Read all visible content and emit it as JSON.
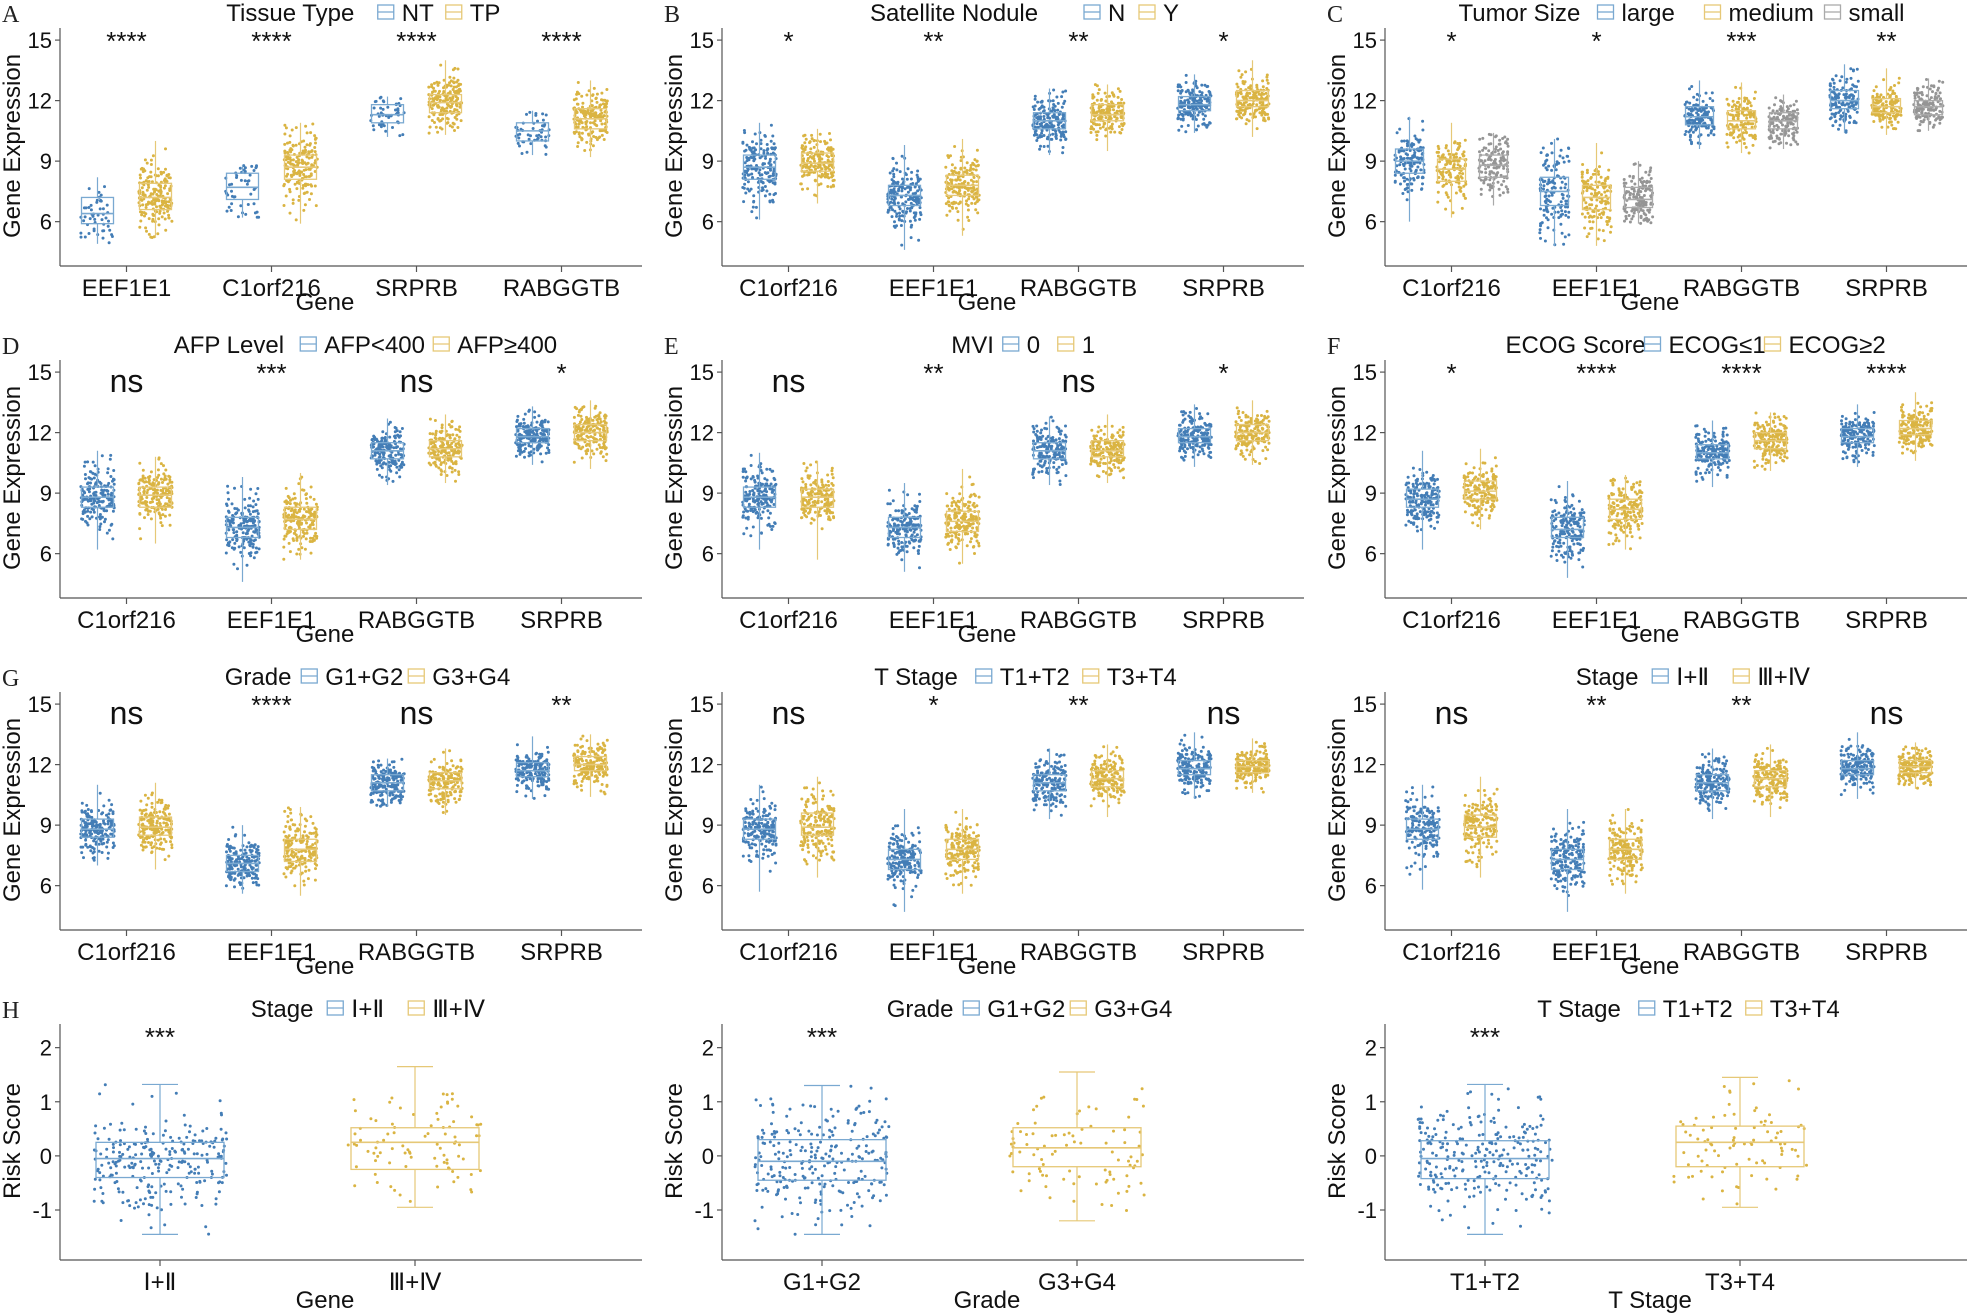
{
  "colors": {
    "group1": "#2f6fae",
    "group2": "#d6ac2e",
    "group3": "#8a8a8a",
    "box1": "#7aa9d1",
    "box2": "#e6c877",
    "box3": "#aaaaaa"
  },
  "chart_data": [
    {
      "id": "A",
      "panel_label": "A",
      "type": "box",
      "legend_title": "Tissue Type",
      "groups": [
        "NT",
        "TP"
      ],
      "xlabel": "Gene",
      "ylabel": "Gene Expression",
      "ylim": [
        4,
        15.5
      ],
      "yticks": [
        "6",
        "9",
        "12",
        "15"
      ],
      "categories": [
        "EEF1E1",
        "C1orf216",
        "SRPRB",
        "RABGGTB"
      ],
      "significance": [
        "****",
        "****",
        "****",
        "****"
      ],
      "series": [
        {
          "name": "NT",
          "boxes": [
            [
              4.9,
              5.9,
              6.4,
              7.2,
              8.2
            ],
            [
              6.2,
              7.1,
              7.7,
              8.4,
              8.8
            ],
            [
              10.2,
              10.9,
              11.3,
              11.8,
              12.2
            ],
            [
              9.3,
              10.0,
              10.5,
              10.9,
              11.5
            ]
          ]
        },
        {
          "name": "TP",
          "boxes": [
            [
              5.2,
              6.6,
              7.2,
              7.9,
              10.0
            ],
            [
              5.9,
              8.1,
              8.7,
              9.3,
              10.9
            ],
            [
              10.3,
              11.4,
              11.9,
              12.3,
              14.0
            ],
            [
              9.2,
              10.6,
              11.1,
              11.6,
              13.0
            ]
          ]
        }
      ]
    },
    {
      "id": "B",
      "panel_label": "B",
      "type": "box",
      "legend_title": "Satellite Nodule",
      "groups": [
        "N",
        "Y"
      ],
      "xlabel": "Gene",
      "ylabel": "Gene Expression",
      "ylim": [
        4,
        15.5
      ],
      "yticks": [
        "6",
        "9",
        "12",
        "15"
      ],
      "categories": [
        "C1orf216",
        "EEF1E1",
        "RABGGTB",
        "SRPRB"
      ],
      "significance": [
        "*",
        "**",
        "**",
        "*"
      ],
      "series": [
        {
          "name": "N",
          "boxes": [
            [
              6.1,
              8.1,
              8.7,
              9.3,
              10.9
            ],
            [
              4.6,
              6.8,
              7.3,
              7.8,
              9.8
            ],
            [
              9.3,
              10.6,
              11.0,
              11.4,
              12.6
            ],
            [
              10.4,
              11.5,
              11.8,
              12.2,
              13.3
            ]
          ]
        },
        {
          "name": "Y",
          "boxes": [
            [
              6.9,
              8.5,
              8.9,
              9.4,
              10.6
            ],
            [
              5.3,
              7.3,
              7.8,
              8.3,
              10.1
            ],
            [
              9.5,
              11.0,
              11.3,
              11.8,
              12.8
            ],
            [
              10.2,
              11.7,
              12.0,
              12.5,
              14.0
            ]
          ]
        }
      ]
    },
    {
      "id": "C",
      "panel_label": "C",
      "type": "box",
      "legend_title": "Tumor Size",
      "groups": [
        "large",
        "medium",
        "small"
      ],
      "xlabel": "Gene",
      "ylabel": "Gene Expression",
      "ylim": [
        4,
        15.5
      ],
      "yticks": [
        "6",
        "9",
        "12",
        "15"
      ],
      "categories": [
        "C1orf216",
        "EEF1E1",
        "RABGGTB",
        "SRPRB"
      ],
      "significance": [
        "*",
        "*",
        "***",
        "**"
      ],
      "series": [
        {
          "name": "large",
          "boxes": [
            [
              6.0,
              8.4,
              9.0,
              9.6,
              11.2
            ],
            [
              4.8,
              6.8,
              7.5,
              8.2,
              10.1
            ],
            [
              9.6,
              10.8,
              11.2,
              11.7,
              13.0
            ],
            [
              10.4,
              11.6,
              12.0,
              12.5,
              13.8
            ]
          ]
        },
        {
          "name": "medium",
          "boxes": [
            [
              6.2,
              8.0,
              8.6,
              9.1,
              10.9
            ],
            [
              4.8,
              6.6,
              7.2,
              7.8,
              9.9
            ],
            [
              9.4,
              10.6,
              11.0,
              11.5,
              12.9
            ],
            [
              10.3,
              11.4,
              11.7,
              12.1,
              13.6
            ]
          ]
        },
        {
          "name": "small",
          "boxes": [
            [
              6.8,
              8.2,
              8.8,
              9.3,
              10.4
            ],
            [
              5.9,
              6.7,
              7.1,
              7.7,
              9.0
            ],
            [
              9.6,
              10.6,
              11.0,
              11.4,
              12.3
            ],
            [
              10.5,
              11.3,
              11.7,
              12.0,
              13.1
            ]
          ]
        }
      ]
    },
    {
      "id": "D",
      "panel_label": "D",
      "type": "box",
      "legend_title": "AFP Level",
      "groups": [
        "AFP<400",
        "AFP≥400"
      ],
      "xlabel": "Gene",
      "ylabel": "Gene Expression",
      "ylim": [
        4,
        15.5
      ],
      "yticks": [
        "6",
        "9",
        "12",
        "15"
      ],
      "categories": [
        "C1orf216",
        "EEF1E1",
        "RABGGTB",
        "SRPRB"
      ],
      "significance": [
        "ns",
        "***",
        "ns",
        "*"
      ],
      "series": [
        {
          "name": "AFP<400",
          "boxes": [
            [
              6.2,
              8.3,
              8.8,
              9.3,
              11.1
            ],
            [
              4.6,
              6.8,
              7.3,
              7.8,
              9.8
            ],
            [
              9.4,
              10.7,
              11.1,
              11.5,
              12.7
            ],
            [
              10.4,
              11.5,
              11.8,
              12.2,
              13.3
            ]
          ]
        },
        {
          "name": "AFP≥400",
          "boxes": [
            [
              6.5,
              8.3,
              8.9,
              9.3,
              10.8
            ],
            [
              5.7,
              7.2,
              7.7,
              8.3,
              10.0
            ],
            [
              9.5,
              10.8,
              11.2,
              11.6,
              12.9
            ],
            [
              10.2,
              11.6,
              12.0,
              12.4,
              13.6
            ]
          ]
        }
      ]
    },
    {
      "id": "E",
      "panel_label": "E",
      "type": "box",
      "legend_title": "MVI",
      "groups": [
        "0",
        "1"
      ],
      "xlabel": "Gene",
      "ylabel": "Gene Expression",
      "ylim": [
        4,
        15.5
      ],
      "yticks": [
        "6",
        "9",
        "12",
        "15"
      ],
      "categories": [
        "C1orf216",
        "EEF1E1",
        "RABGGTB",
        "SRPRB"
      ],
      "significance": [
        "ns",
        "**",
        "ns",
        "*"
      ],
      "series": [
        {
          "name": "0",
          "boxes": [
            [
              6.2,
              8.3,
              8.8,
              9.3,
              11.0
            ],
            [
              5.1,
              6.8,
              7.3,
              7.8,
              9.5
            ],
            [
              9.4,
              10.7,
              11.1,
              11.5,
              12.8
            ],
            [
              10.3,
              11.5,
              11.8,
              12.2,
              13.4
            ]
          ]
        },
        {
          "name": "1",
          "boxes": [
            [
              5.7,
              8.3,
              8.8,
              9.2,
              10.6
            ],
            [
              5.5,
              7.1,
              7.6,
              8.1,
              10.2
            ],
            [
              9.5,
              10.8,
              11.1,
              11.6,
              12.9
            ],
            [
              10.4,
              11.6,
              12.0,
              12.4,
              13.6
            ]
          ]
        }
      ]
    },
    {
      "id": "F",
      "panel_label": "F",
      "type": "box",
      "legend_title": "ECOG Score",
      "groups": [
        "ECOG≤1",
        "ECOG≥2"
      ],
      "xlabel": "Gene",
      "ylabel": "Gene Expression",
      "ylim": [
        4,
        15.5
      ],
      "yticks": [
        "6",
        "9",
        "12",
        "15"
      ],
      "categories": [
        "C1orf216",
        "EEF1E1",
        "RABGGTB",
        "SRPRB"
      ],
      "significance": [
        "*",
        "****",
        "****",
        "****"
      ],
      "series": [
        {
          "name": "ECOG≤1",
          "boxes": [
            [
              6.2,
              8.3,
              8.7,
              9.2,
              11.1
            ],
            [
              4.8,
              6.8,
              7.2,
              7.8,
              9.6
            ],
            [
              9.3,
              10.7,
              11.0,
              11.4,
              12.6
            ],
            [
              10.3,
              11.5,
              11.8,
              12.2,
              13.4
            ]
          ]
        },
        {
          "name": "ECOG≥2",
          "boxes": [
            [
              7.2,
              8.7,
              9.1,
              9.6,
              11.2
            ],
            [
              6.2,
              7.7,
              8.2,
              8.7,
              9.9
            ],
            [
              10.1,
              11.2,
              11.6,
              12.0,
              13.0
            ],
            [
              10.6,
              11.9,
              12.2,
              12.6,
              14.0
            ]
          ]
        }
      ]
    },
    {
      "id": "G1",
      "panel_label": "G",
      "type": "box",
      "legend_title": "Grade",
      "groups": [
        "G1+G2",
        "G3+G4"
      ],
      "xlabel": "Gene",
      "ylabel": "Gene Expression",
      "ylim": [
        4,
        15.5
      ],
      "yticks": [
        "6",
        "9",
        "12",
        "15"
      ],
      "categories": [
        "C1orf216",
        "EEF1E1",
        "RABGGTB",
        "SRPRB"
      ],
      "significance": [
        "ns",
        "****",
        "ns",
        "**"
      ],
      "series": [
        {
          "name": "G1+G2",
          "boxes": [
            [
              7.0,
              8.4,
              8.8,
              9.3,
              11.0
            ],
            [
              5.6,
              6.7,
              7.1,
              7.5,
              9.0
            ],
            [
              9.9,
              10.7,
              11.1,
              11.5,
              12.3
            ],
            [
              10.3,
              11.4,
              11.7,
              12.1,
              13.4
            ]
          ]
        },
        {
          "name": "G3+G4",
          "boxes": [
            [
              6.8,
              8.5,
              8.9,
              9.4,
              11.1
            ],
            [
              5.5,
              7.2,
              7.8,
              8.3,
              9.9
            ],
            [
              9.5,
              10.8,
              11.2,
              11.6,
              12.8
            ],
            [
              10.4,
              11.7,
              12.0,
              12.4,
              13.5
            ]
          ]
        }
      ]
    },
    {
      "id": "G2",
      "panel_label": "",
      "type": "box",
      "legend_title": "T Stage",
      "groups": [
        "T1+T2",
        "T3+T4"
      ],
      "xlabel": "Gene",
      "ylabel": "Gene Expression",
      "ylim": [
        4,
        15.5
      ],
      "yticks": [
        "6",
        "9",
        "12",
        "15"
      ],
      "categories": [
        "C1orf216",
        "EEF1E1",
        "RABGGTB",
        "SRPRB"
      ],
      "significance": [
        "ns",
        "*",
        "**",
        "ns"
      ],
      "series": [
        {
          "name": "T1+T2",
          "boxes": [
            [
              5.7,
              8.3,
              8.8,
              9.3,
              11.0
            ],
            [
              4.7,
              6.8,
              7.3,
              7.8,
              9.8
            ],
            [
              9.3,
              10.7,
              11.1,
              11.5,
              12.8
            ],
            [
              10.3,
              11.5,
              11.8,
              12.2,
              13.6
            ]
          ]
        },
        {
          "name": "T3+T4",
          "boxes": [
            [
              6.4,
              8.5,
              8.9,
              9.6,
              11.4
            ],
            [
              5.6,
              7.3,
              7.8,
              8.3,
              9.8
            ],
            [
              9.4,
              10.9,
              11.3,
              11.7,
              13.0
            ],
            [
              10.6,
              11.6,
              11.9,
              12.2,
              13.3
            ]
          ]
        }
      ]
    },
    {
      "id": "G3",
      "panel_label": "",
      "type": "box",
      "legend_title": "Stage",
      "groups": [
        "Ⅰ+Ⅱ",
        "Ⅲ+Ⅳ"
      ],
      "xlabel": "Gene",
      "ylabel": "Gene Expression",
      "ylim": [
        4,
        15.5
      ],
      "yticks": [
        "6",
        "9",
        "12",
        "15"
      ],
      "categories": [
        "C1orf216",
        "EEF1E1",
        "RABGGTB",
        "SRPRB"
      ],
      "significance": [
        "ns",
        "**",
        "**",
        "ns"
      ],
      "series": [
        {
          "name": "Ⅰ+Ⅱ",
          "boxes": [
            [
              5.8,
              8.3,
              8.8,
              9.3,
              11.0
            ],
            [
              4.7,
              6.8,
              7.3,
              7.8,
              9.8
            ],
            [
              9.3,
              10.7,
              11.1,
              11.5,
              12.8
            ],
            [
              10.3,
              11.5,
              11.8,
              12.2,
              13.6
            ]
          ]
        },
        {
          "name": "Ⅲ+Ⅳ",
          "boxes": [
            [
              6.4,
              8.4,
              8.9,
              9.5,
              11.4
            ],
            [
              5.6,
              7.3,
              7.8,
              8.3,
              9.8
            ],
            [
              9.4,
              10.9,
              11.3,
              11.7,
              13.0
            ],
            [
              10.8,
              11.6,
              11.9,
              12.2,
              13.1
            ]
          ]
        }
      ]
    },
    {
      "id": "H1",
      "panel_label": "H",
      "type": "box",
      "legend_title": "Stage",
      "groups": [
        "Ⅰ+Ⅱ",
        "Ⅲ+Ⅳ"
      ],
      "xlabel": "Gene",
      "ylabel": "Risk Score",
      "ylim": [
        -1.85,
        2.4
      ],
      "yticks": [
        "-1",
        "0",
        "1",
        "2"
      ],
      "ytick_values": [
        -1,
        0,
        1,
        2
      ],
      "categories": [
        "Ⅰ+Ⅱ",
        "Ⅲ+Ⅳ"
      ],
      "significance": [
        "***",
        ""
      ],
      "series": [
        {
          "name": "Ⅰ+Ⅱ",
          "boxes": [
            [
              -1.45,
              -0.4,
              -0.05,
              0.25,
              1.32
            ]
          ]
        },
        {
          "name": "Ⅲ+Ⅳ",
          "boxes": [
            [
              -0.95,
              -0.25,
              0.25,
              0.52,
              1.65
            ]
          ]
        }
      ]
    },
    {
      "id": "H2",
      "panel_label": "",
      "type": "box",
      "legend_title": "Grade",
      "groups": [
        "G1+G2",
        "G3+G4"
      ],
      "xlabel": "Grade",
      "ylabel": "Risk Score",
      "ylim": [
        -1.85,
        2.4
      ],
      "yticks": [
        "-1",
        "0",
        "1",
        "2"
      ],
      "ytick_values": [
        -1,
        0,
        1,
        2
      ],
      "categories": [
        "G1+G2",
        "G3+G4"
      ],
      "significance": [
        "***",
        ""
      ],
      "series": [
        {
          "name": "G1+G2",
          "boxes": [
            [
              -1.45,
              -0.45,
              -0.1,
              0.3,
              1.3
            ]
          ]
        },
        {
          "name": "G3+G4",
          "boxes": [
            [
              -1.2,
              -0.2,
              0.15,
              0.52,
              1.55
            ]
          ]
        }
      ]
    },
    {
      "id": "H3",
      "panel_label": "",
      "type": "box",
      "legend_title": "T Stage",
      "groups": [
        "T1+T2",
        "T3+T4"
      ],
      "xlabel": "T Stage",
      "ylabel": "Risk Score",
      "ylim": [
        -1.85,
        2.4
      ],
      "yticks": [
        "-1",
        "0",
        "1",
        "2"
      ],
      "ytick_values": [
        -1,
        0,
        1,
        2
      ],
      "categories": [
        "T1+T2",
        "T3+T4"
      ],
      "significance": [
        "***",
        ""
      ],
      "series": [
        {
          "name": "T1+T2",
          "boxes": [
            [
              -1.45,
              -0.42,
              -0.05,
              0.28,
              1.32
            ]
          ]
        },
        {
          "name": "T3+T4",
          "boxes": [
            [
              -0.95,
              -0.2,
              0.25,
              0.55,
              1.45
            ]
          ]
        }
      ]
    }
  ]
}
